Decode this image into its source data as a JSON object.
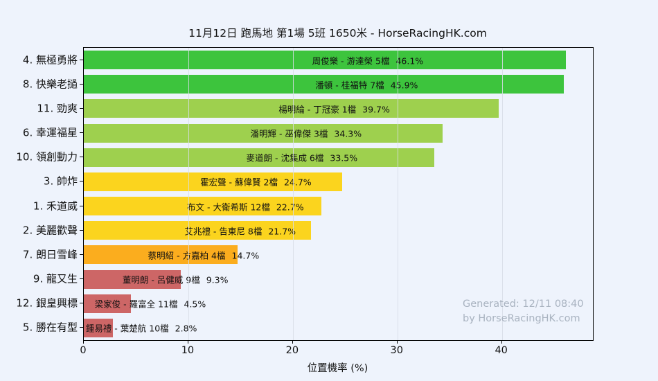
{
  "watermark": {
    "line1": "Generated: 12/11 08:40",
    "line2": "by HorseRacingHK.com"
  },
  "colors": {
    "background": "#eef3fc",
    "grid": "#d7dce6",
    "spine": "#000000",
    "text": "#111111",
    "watermark": "#a9b3c0",
    "green": "#3dc43d",
    "yellow_green": "#9ed04e",
    "gold": "#fbd41e",
    "orange": "#fbad1e",
    "red": "#cd6666"
  },
  "chart_data": {
    "type": "bar",
    "orientation": "horizontal",
    "title": "11月12日  跑馬地  第1場  5班  1650米 - HorseRacingHK.com",
    "xlabel": "位置機率 (%)",
    "ylabel": "",
    "xlim": [
      0,
      48.7
    ],
    "xticks": [
      0,
      10,
      20,
      30,
      40
    ],
    "grid": true,
    "legend": false,
    "categories": [
      "4. 無極勇將",
      "8. 快樂老撾",
      "11. 勁爽",
      "6. 幸運福星",
      "10. 領創動力",
      "3. 帥炸",
      "1. 禾道威",
      "2. 美麗歡聲",
      "7. 朗日雪峰",
      "9. 龍又生",
      "12. 銀皇興標",
      "5. 勝在有型"
    ],
    "values": [
      46.1,
      45.9,
      39.7,
      34.3,
      33.5,
      24.7,
      22.7,
      21.7,
      14.7,
      9.3,
      4.5,
      2.8
    ],
    "annotations": [
      "周俊樂 - 游達榮 5檔",
      "潘頓 - 桂福特 7檔",
      "楊明綸 - 丁冠豪 1檔",
      "潘明輝 - 巫偉傑 3檔",
      "麥道朗 - 沈集成 6檔",
      "霍宏聲 - 蘇偉賢 2檔",
      "布文 - 大衛希斯 12檔",
      "艾兆禮 - 告東尼 8檔",
      "蔡明紹 - 方嘉柏 4檔",
      "董明朗 - 呂健威 9檔",
      "梁家俊 - 羅富全 11檔",
      "鍾易禮 - 葉楚航 10檔"
    ],
    "bar_colors": [
      "#3dc43d",
      "#3dc43d",
      "#9ed04e",
      "#9ed04e",
      "#9ed04e",
      "#fbd41e",
      "#fbd41e",
      "#fbd41e",
      "#fbad1e",
      "#cd6666",
      "#cd6666",
      "#cd6666"
    ]
  }
}
